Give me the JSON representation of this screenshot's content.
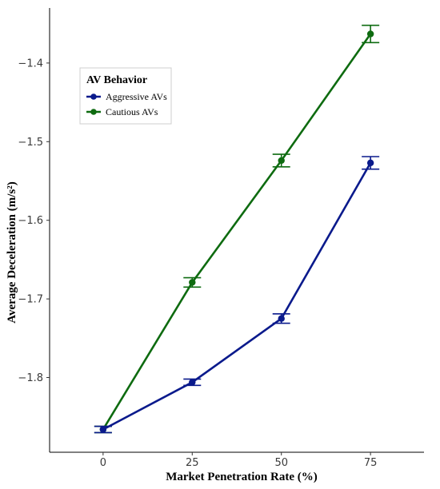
{
  "chart_data": {
    "type": "line",
    "xlabel": "Market Penetration Rate (%)",
    "ylabel": "Average Deceleration (m/s²)",
    "x": [
      0,
      25,
      50,
      75
    ],
    "x_ticks": [
      "0",
      "25",
      "50",
      "75"
    ],
    "xlim": [
      -15,
      90
    ],
    "ylim": [
      -1.895,
      -1.33
    ],
    "y_ticks": [
      -1.8,
      -1.7,
      -1.6,
      -1.5,
      -1.4
    ],
    "y_tick_labels": [
      "−1.8",
      "−1.7",
      "−1.6",
      "−1.5",
      "−1.4"
    ],
    "grid": false,
    "legend": {
      "title": "AV Behavior",
      "placement": "top-left"
    },
    "series": [
      {
        "name": "Aggressive AVs",
        "color": "#0a1a8c",
        "values": [
          -1.866,
          -1.806,
          -1.725,
          -1.527
        ],
        "error": [
          0.004,
          0.004,
          0.006,
          0.008
        ]
      },
      {
        "name": "Cautious AVs",
        "color": "#0e6b10",
        "values": [
          -1.866,
          -1.679,
          -1.524,
          -1.363
        ],
        "error": [
          0.004,
          0.006,
          0.008,
          0.011
        ]
      }
    ]
  }
}
